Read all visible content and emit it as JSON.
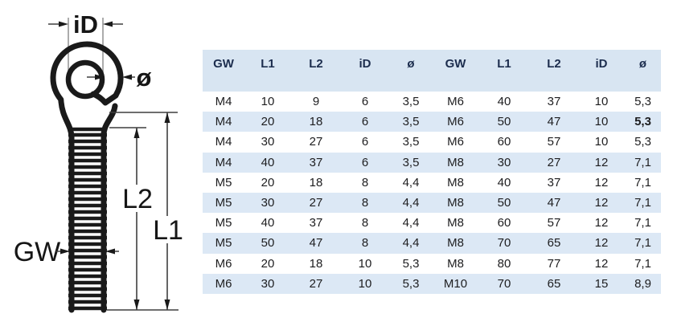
{
  "diagram": {
    "id_label": "iD",
    "diameter_label": "ø",
    "l2_label": "L2",
    "l1_label": "L1",
    "gw_label": "GW"
  },
  "table": {
    "columns": [
      "GW",
      "L1",
      "L2",
      "iD",
      "ø"
    ],
    "rows": [
      {
        "left": [
          "M4",
          "10",
          "9",
          "6",
          "3,5"
        ],
        "right": [
          "M6",
          "40",
          "37",
          "10",
          "5,3"
        ]
      },
      {
        "left": [
          "M4",
          "20",
          "18",
          "6",
          "3,5"
        ],
        "right": [
          "M6",
          "50",
          "47",
          "10",
          "5,3"
        ],
        "right_bold_col": 4
      },
      {
        "left": [
          "M4",
          "30",
          "27",
          "6",
          "3,5"
        ],
        "right": [
          "M6",
          "60",
          "57",
          "10",
          "5,3"
        ]
      },
      {
        "left": [
          "M4",
          "40",
          "37",
          "6",
          "3,5"
        ],
        "right": [
          "M8",
          "30",
          "27",
          "12",
          "7,1"
        ]
      },
      {
        "left": [
          "M5",
          "20",
          "18",
          "8",
          "4,4"
        ],
        "right": [
          "M8",
          "40",
          "37",
          "12",
          "7,1"
        ]
      },
      {
        "left": [
          "M5",
          "30",
          "27",
          "8",
          "4,4"
        ],
        "right": [
          "M8",
          "50",
          "47",
          "12",
          "7,1"
        ]
      },
      {
        "left": [
          "M5",
          "40",
          "37",
          "8",
          "4,4"
        ],
        "right": [
          "M8",
          "60",
          "57",
          "12",
          "7,1"
        ]
      },
      {
        "left": [
          "M5",
          "50",
          "47",
          "8",
          "4,4"
        ],
        "right": [
          "M8",
          "70",
          "65",
          "12",
          "7,1"
        ]
      },
      {
        "left": [
          "M6",
          "20",
          "18",
          "10",
          "5,3"
        ],
        "right": [
          "M8",
          "80",
          "77",
          "12",
          "7,1"
        ]
      },
      {
        "left": [
          "M6",
          "30",
          "27",
          "10",
          "5,3"
        ],
        "right": [
          "M10",
          "70",
          "65",
          "15",
          "8,9"
        ]
      }
    ],
    "colors": {
      "header_bg": "#d8e5f2",
      "stripe_bg": "#dce8f5",
      "header_text": "#1c2d4e",
      "body_text": "#1d1d1f"
    }
  }
}
